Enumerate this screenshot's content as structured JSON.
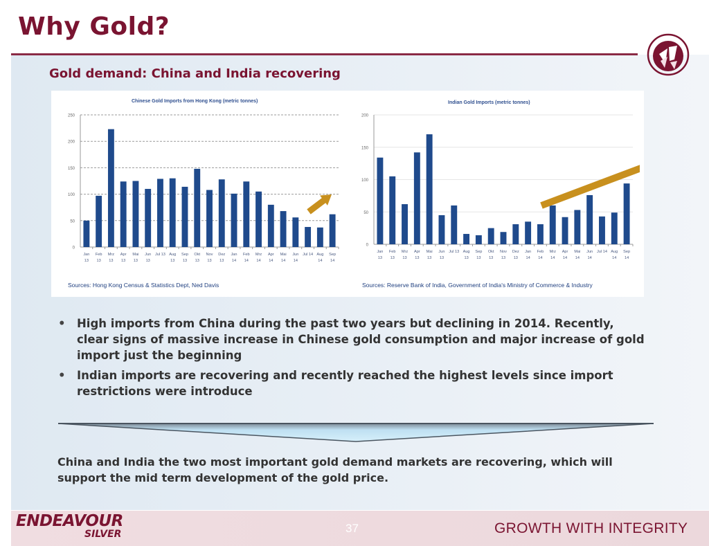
{
  "slide": {
    "title": "Why Gold?",
    "subtitle": "Gold demand: China and India recovering",
    "bullets": [
      "High imports from China during the past two years but declining in 2014.  Recently, clear signs of massive increase in Chinese gold consumption and major increase of gold import just the beginning",
      "Indian imports are recovering and recently reached the highest levels since import restrictions were introduce"
    ],
    "bullet_symbol": "•",
    "summary": "China and India the two most important gold demand markets are recovering, which will support the mid term development of the gold price.",
    "footer": {
      "brand_line1": "ENDEAVOUR",
      "brand_line2": "SILVER",
      "page_number": "37",
      "tagline": "GROWTH WITH INTEGRITY"
    },
    "colors": {
      "brand": "#7a1431",
      "bar": "#1f4a8c",
      "arrow": "#c8901e"
    },
    "logo_icon": "endeavour-sails-logo"
  },
  "chart_data": [
    {
      "type": "bar",
      "title": "Chinese Gold Imports from Hong Kong (metric tonnes)",
      "source": "Sources: Hong Kong Census & Statistics Dept, Ned Davis",
      "categories": [
        [
          "Jan",
          "13"
        ],
        [
          "Feb",
          "13"
        ],
        [
          "Mrz",
          "13"
        ],
        [
          "Apr",
          "13"
        ],
        [
          "Mai",
          "13"
        ],
        [
          "Jun",
          "13"
        ],
        [
          "Jul 13",
          ""
        ],
        [
          "Aug",
          "13"
        ],
        [
          "Sep",
          "13"
        ],
        [
          "Okt",
          "13"
        ],
        [
          "Nov",
          "13"
        ],
        [
          "Dez",
          "13"
        ],
        [
          "Jan",
          "14"
        ],
        [
          "Feb",
          "14"
        ],
        [
          "Mrz",
          "14"
        ],
        [
          "Apr",
          "14"
        ],
        [
          "Mai",
          "14"
        ],
        [
          "Jun",
          "14"
        ],
        [
          "Jul 14",
          ""
        ],
        [
          "Aug",
          "14"
        ],
        [
          "Sep",
          "14"
        ]
      ],
      "values": [
        50,
        97,
        223,
        124,
        125,
        110,
        129,
        130,
        114,
        148,
        108,
        128,
        101,
        124,
        105,
        80,
        68,
        56,
        38,
        37,
        62
      ],
      "ylim": [
        0,
        250
      ],
      "yticks": [
        0,
        50,
        100,
        150,
        200,
        250
      ],
      "grid": "dashed",
      "annotation": "up-arrow"
    },
    {
      "type": "bar",
      "title": "Indian Gold Imports (metric tonnes)",
      "source": "Sources: Reserve Bank of India, Government of India's Ministry of Commerce & Industry",
      "categories": [
        [
          "Jan",
          "13"
        ],
        [
          "Feb",
          "13"
        ],
        [
          "Mrz",
          "13"
        ],
        [
          "Apr",
          "13"
        ],
        [
          "Mai",
          "13"
        ],
        [
          "Jun",
          "13"
        ],
        [
          "Jul 13",
          ""
        ],
        [
          "Aug",
          "13"
        ],
        [
          "Sep",
          "13"
        ],
        [
          "Okt",
          "13"
        ],
        [
          "Nov",
          "13"
        ],
        [
          "Dez",
          "13"
        ],
        [
          "Jan",
          "14"
        ],
        [
          "Feb",
          "14"
        ],
        [
          "Mrz",
          "14"
        ],
        [
          "Apr",
          "14"
        ],
        [
          "Mai",
          "14"
        ],
        [
          "Jun",
          "14"
        ],
        [
          "Jul 14",
          ""
        ],
        [
          "Aug",
          "14"
        ],
        [
          "Sep",
          "14"
        ]
      ],
      "values": [
        134,
        105,
        62,
        142,
        170,
        45,
        60,
        16,
        14,
        25,
        19,
        31,
        35,
        31,
        60,
        42,
        53,
        76,
        43,
        49,
        94
      ],
      "ylim": [
        0,
        200
      ],
      "yticks": [
        0,
        50,
        100,
        150,
        200
      ],
      "grid": "solid",
      "annotation": "up-arrow"
    }
  ]
}
